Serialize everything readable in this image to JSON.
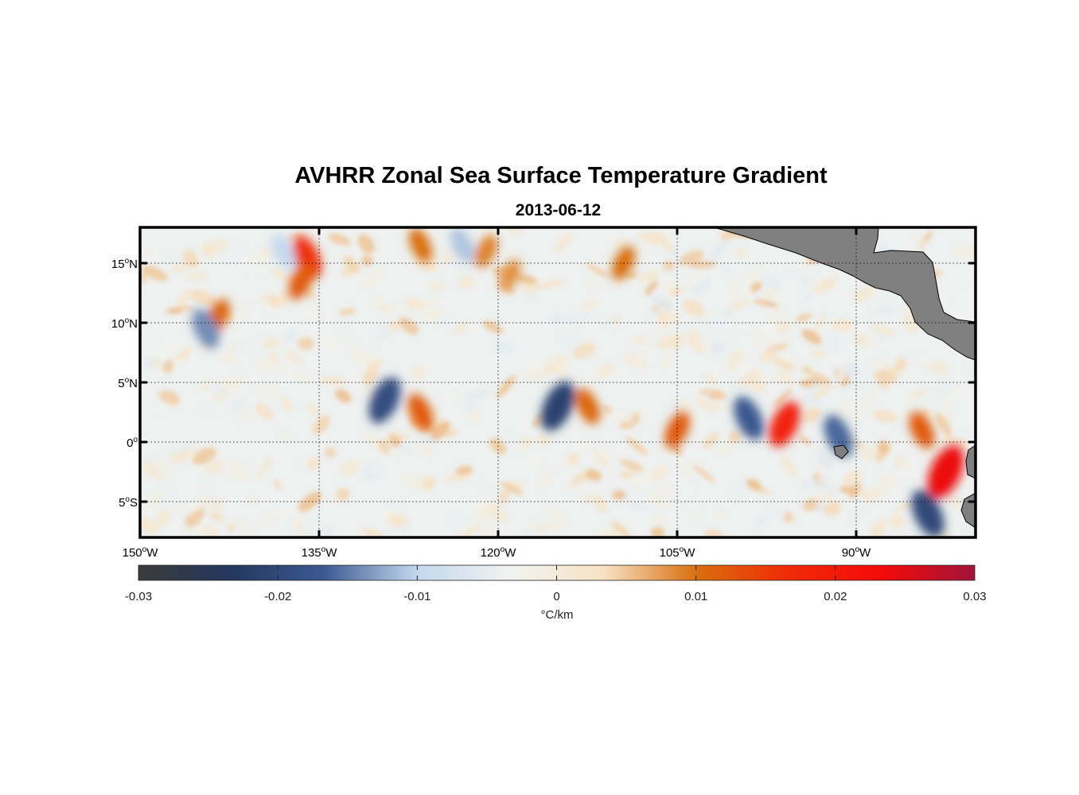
{
  "title": "AVHRR Zonal Sea Surface Temperature Gradient",
  "subtitle": "2013-06-12",
  "map": {
    "lon_range": [
      -150,
      -80
    ],
    "lat_range": [
      -8,
      18
    ],
    "grid": "dotted",
    "lat_ticks": [
      {
        "value": 15,
        "num": "15",
        "hemi": "N"
      },
      {
        "value": 10,
        "num": "10",
        "hemi": "N"
      },
      {
        "value": 5,
        "num": "5",
        "hemi": "N"
      },
      {
        "value": 0,
        "num": "0",
        "hemi": ""
      },
      {
        "value": -5,
        "num": "5",
        "hemi": "S"
      }
    ],
    "lon_ticks": [
      {
        "value": -150,
        "num": "150",
        "hemi": "W"
      },
      {
        "value": -135,
        "num": "135",
        "hemi": "W"
      },
      {
        "value": -120,
        "num": "120",
        "hemi": "W"
      },
      {
        "value": -105,
        "num": "105",
        "hemi": "W"
      },
      {
        "value": -90,
        "num": "90",
        "hemi": "W"
      }
    ],
    "land_color": "#808080"
  },
  "colorbar": {
    "min": -0.03,
    "max": 0.03,
    "ticks": [
      "-0.03",
      "-0.02",
      "-0.01",
      "0",
      "0.01",
      "0.02",
      "0.03"
    ],
    "units": "°C/km",
    "colors": [
      "#3b3b3b",
      "#24375e",
      "#3c5a93",
      "#c4d8ee",
      "#f0f3f0",
      "#f8e2c4",
      "#d9700e",
      "#f02a06",
      "#f40a0a",
      "#a01438"
    ]
  },
  "chart_data": {
    "type": "heatmap",
    "variable": "Zonal SST gradient",
    "units": "°C/km",
    "features": [
      {
        "lon": -136.0,
        "lat": 15.5,
        "value": 0.016
      },
      {
        "lon": -136.5,
        "lat": 13.5,
        "value": 0.012
      },
      {
        "lon": -138.0,
        "lat": 16.0,
        "value": -0.01
      },
      {
        "lon": -143.5,
        "lat": 10.5,
        "value": 0.011
      },
      {
        "lon": -144.5,
        "lat": 9.5,
        "value": -0.014
      },
      {
        "lon": -129.5,
        "lat": 3.5,
        "value": -0.019
      },
      {
        "lon": -126.5,
        "lat": 2.5,
        "value": 0.012
      },
      {
        "lon": -115.0,
        "lat": 3.0,
        "value": -0.021
      },
      {
        "lon": -112.5,
        "lat": 3.0,
        "value": 0.011
      },
      {
        "lon": -105.0,
        "lat": 1.0,
        "value": 0.012
      },
      {
        "lon": -99.0,
        "lat": 2.0,
        "value": -0.017
      },
      {
        "lon": -96.0,
        "lat": 1.5,
        "value": 0.018
      },
      {
        "lon": -91.5,
        "lat": 0.5,
        "value": -0.016
      },
      {
        "lon": -82.5,
        "lat": -2.5,
        "value": 0.024
      },
      {
        "lon": -84.0,
        "lat": -6.0,
        "value": -0.02
      },
      {
        "lon": -109.5,
        "lat": 15.0,
        "value": 0.01
      },
      {
        "lon": -126.5,
        "lat": 16.5,
        "value": 0.01
      },
      {
        "lon": -121.0,
        "lat": 16.0,
        "value": 0.009
      },
      {
        "lon": -123.0,
        "lat": 16.5,
        "value": -0.011
      },
      {
        "lon": -119.0,
        "lat": 14.0,
        "value": 0.008
      },
      {
        "lon": -84.5,
        "lat": 1.0,
        "value": 0.012
      }
    ]
  }
}
